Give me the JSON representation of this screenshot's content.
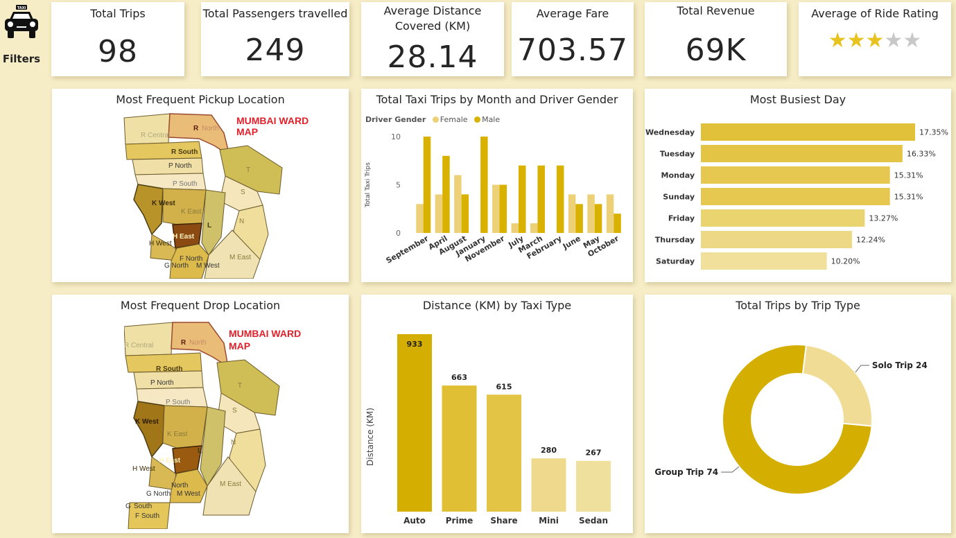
{
  "sidebar": {
    "filters_label": "Filters",
    "taxi_sign": "TAXI"
  },
  "kpis": {
    "total_trips": {
      "title": "Total Trips",
      "value": "98"
    },
    "total_passengers": {
      "title": "Total Passengers travelled",
      "value": "249"
    },
    "avg_distance": {
      "title_line1": "Average Distance",
      "title_line2": "Covered (KM)",
      "value": "28.14"
    },
    "avg_fare": {
      "title": "Average Fare",
      "value": "703.57"
    },
    "total_revenue": {
      "title": "Total Revenue",
      "value": "69K"
    },
    "avg_rating": {
      "title": "Average of Ride Rating",
      "rating": 3,
      "max": 5
    }
  },
  "pickup": {
    "title": "Most Frequent Pickup Location",
    "caption_line1": "MUMBAI WARD",
    "caption_line2": "MAP",
    "wards": [
      "R Central",
      "R",
      "North",
      "R South",
      "P North",
      "P South",
      "T",
      "S",
      "K West",
      "K East",
      "L",
      "N",
      "H East",
      "H West",
      "F North",
      "G North",
      "M West",
      "M East"
    ]
  },
  "drop": {
    "title": "Most Frequent Drop Location",
    "caption_line1": "MUMBAI WARD",
    "caption_line2": "MAP",
    "wards": [
      "R Central",
      "R",
      "North",
      "R South",
      "P North",
      "P South",
      "T",
      "S",
      "K West",
      "K East",
      "L",
      "N",
      "H East",
      "H West",
      "North",
      "G North",
      "M West",
      "M East",
      "G",
      "South",
      "F South"
    ]
  },
  "colors": {
    "female": "#ecd178",
    "male": "#d9b200",
    "bg": "#f6ecc6"
  },
  "chart_data": [
    {
      "type": "bar",
      "title": "Total Taxi Trips by Month and Driver Gender",
      "legend_title": "Driver Gender",
      "ylabel": "Total Taxi Trips",
      "ylim": [
        0,
        10
      ],
      "yticks": [
        0,
        5,
        10
      ],
      "categories": [
        "September",
        "April",
        "August",
        "January",
        "November",
        "July",
        "March",
        "February",
        "June",
        "May",
        "October"
      ],
      "series": [
        {
          "name": "Female",
          "color": "#ecd178",
          "values": [
            3,
            4,
            6,
            0,
            5,
            1,
            1,
            0,
            4,
            4,
            4
          ]
        },
        {
          "name": "Male",
          "color": "#d9b200",
          "values": [
            10,
            8,
            4,
            10,
            5,
            7,
            7,
            7,
            3,
            3,
            2
          ]
        }
      ]
    },
    {
      "type": "bar",
      "orientation": "horizontal",
      "title": "Most Busiest Day",
      "categories": [
        "Wednesday",
        "Tuesday",
        "Monday",
        "Sunday",
        "Friday",
        "Thursday",
        "Saturday"
      ],
      "values": [
        17.35,
        16.33,
        15.31,
        15.31,
        13.27,
        12.24,
        10.2
      ],
      "labels": [
        "17.35%",
        "16.33%",
        "15.31%",
        "15.31%",
        "13.27%",
        "12.24%",
        "10.20%"
      ],
      "colors": [
        "#e2c13a",
        "#e4c445",
        "#e6c850",
        "#e6c850",
        "#ead470",
        "#ecd885",
        "#f0e09c"
      ]
    },
    {
      "type": "bar",
      "title": "Distance (KM) by Taxi Type",
      "ylabel": "Distance (KM)",
      "categories": [
        "Auto",
        "Prime",
        "Share",
        "Mini",
        "Sedan"
      ],
      "values": [
        933,
        663,
        615,
        280,
        267
      ],
      "colors": [
        "#d4ae00",
        "#e0bf35",
        "#e4c444",
        "#eed98c",
        "#f0e09e"
      ]
    },
    {
      "type": "pie",
      "style": "donut",
      "title": "Total Trips by Trip Type",
      "categories": [
        "Solo Trip",
        "Group Trip"
      ],
      "values": [
        24,
        74
      ],
      "labels": [
        "Solo Trip 24",
        "Group Trip 74"
      ],
      "colors": [
        "#f0dc94",
        "#d4ae00"
      ]
    }
  ]
}
